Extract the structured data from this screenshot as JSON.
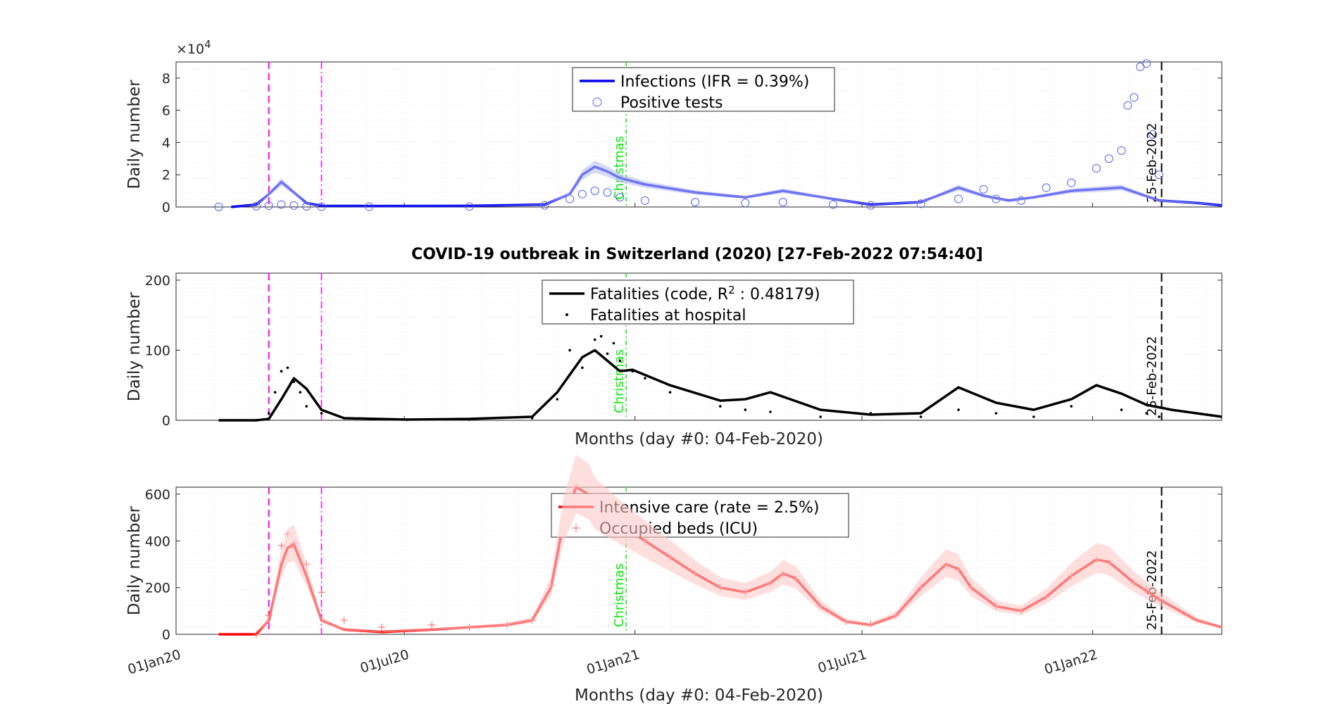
{
  "title": "COVID-19 outbreak in Switzerland (2020) [27-Feb-2022 07:54:40]",
  "colors": {
    "infections": "#0000ee",
    "fatalities": "#000000",
    "icu": "#ff0000",
    "band_blue": "#b9c1f5",
    "band_red": "#ffc8c8",
    "marker_magenta": "#ff00ff",
    "christmas": "#00ee00"
  },
  "x_axis": {
    "label": "Months (day #0: 04-Feb-2020)",
    "ticks": [
      {
        "label": "01Jan20",
        "day": -34
      },
      {
        "label": "01Jul20",
        "day": 148
      },
      {
        "label": "01Jan21",
        "day": 332
      },
      {
        "label": "01Jul21",
        "day": 513
      },
      {
        "label": "01Jan22",
        "day": 697
      }
    ],
    "range_days": [
      -34,
      800
    ]
  },
  "annotations": {
    "christmas": "Christmas",
    "today": "25-Feb-2022",
    "christmas_day": 325,
    "today_day": 752,
    "lockdown_start_day": 40,
    "lockdown_end_day": 82
  },
  "chart_data": [
    {
      "type": "line",
      "ylabel": "Daily number",
      "exponent_label": "×10",
      "exponent": "4",
      "ylim": [
        0,
        90000
      ],
      "yticks": [
        "0",
        "2",
        "4",
        "6",
        "8"
      ],
      "grid": true,
      "legend_placement": "top-center",
      "series": [
        {
          "name": "Infections (IFR = 0.39%)",
          "style": "line",
          "x": [
            10,
            30,
            40,
            50,
            60,
            70,
            82,
            120,
            200,
            260,
            280,
            290,
            300,
            310,
            320,
            340,
            380,
            420,
            450,
            490,
            520,
            560,
            590,
            610,
            630,
            650,
            680,
            720,
            750,
            780,
            800
          ],
          "y": [
            0,
            1500,
            8000,
            15500,
            9000,
            2500,
            700,
            600,
            700,
            1500,
            8000,
            20000,
            25000,
            22000,
            18000,
            14000,
            9000,
            6000,
            10000,
            5000,
            1500,
            3000,
            12000,
            7000,
            4000,
            6000,
            10000,
            12000,
            4000,
            2500,
            1000
          ]
        },
        {
          "name": "Positive tests",
          "style": "circles",
          "x": [
            0,
            30,
            40,
            50,
            60,
            70,
            82,
            120,
            200,
            260,
            280,
            290,
            300,
            310,
            320,
            340,
            380,
            420,
            450,
            490,
            520,
            560,
            590,
            610,
            620,
            640,
            660,
            680,
            700,
            710,
            720,
            725,
            730,
            735,
            740,
            745,
            750
          ],
          "y": [
            0,
            500,
            800,
            1500,
            900,
            400,
            200,
            200,
            300,
            1000,
            5000,
            8000,
            10000,
            9000,
            6000,
            4000,
            3000,
            2500,
            3000,
            1500,
            1000,
            2000,
            5000,
            11000,
            5000,
            4000,
            12000,
            15000,
            24000,
            30000,
            35000,
            63000,
            68000,
            87000,
            89000,
            45000,
            20000
          ]
        }
      ]
    },
    {
      "type": "line",
      "title": "COVID-19 outbreak in Switzerland (2020) [27-Feb-2022 07:54:40]",
      "ylabel": "Daily number",
      "xlabel": "Months (day #0: 04-Feb-2020)",
      "ylim": [
        0,
        210
      ],
      "yticks": [
        "0",
        "100",
        "200"
      ],
      "grid": true,
      "legend_placement": "top-center",
      "series": [
        {
          "name": "Fatalities (code, R",
          "name_sup": "2",
          "name_suffix": " : 0.48179)",
          "style": "line",
          "x": [
            0,
            30,
            40,
            50,
            60,
            70,
            82,
            100,
            150,
            200,
            250,
            270,
            290,
            300,
            310,
            320,
            330,
            360,
            400,
            420,
            440,
            480,
            520,
            560,
            590,
            620,
            650,
            680,
            700,
            720,
            740,
            760,
            800
          ],
          "y": [
            0,
            0,
            2,
            30,
            60,
            45,
            15,
            3,
            1,
            2,
            5,
            40,
            90,
            100,
            85,
            70,
            72,
            50,
            28,
            30,
            40,
            15,
            8,
            10,
            47,
            25,
            15,
            30,
            50,
            38,
            22,
            15,
            5
          ]
        },
        {
          "name": "Fatalities at hospital",
          "style": "dots",
          "x": [
            30,
            40,
            45,
            50,
            55,
            60,
            65,
            70,
            82,
            100,
            150,
            200,
            250,
            270,
            280,
            290,
            300,
            305,
            310,
            315,
            320,
            330,
            340,
            360,
            400,
            420,
            440,
            480,
            520,
            560,
            590,
            620,
            650,
            680,
            700,
            720,
            740,
            750
          ],
          "y": [
            0,
            10,
            40,
            70,
            75,
            55,
            40,
            20,
            10,
            3,
            1,
            1,
            3,
            30,
            100,
            75,
            115,
            120,
            95,
            110,
            85,
            70,
            60,
            40,
            20,
            15,
            12,
            5,
            10,
            5,
            15,
            10,
            5,
            20,
            50,
            15,
            10,
            5
          ]
        }
      ]
    },
    {
      "type": "line",
      "ylabel": "Daily number",
      "xlabel": "Months (day #0: 04-Feb-2020)",
      "ylim": [
        0,
        630
      ],
      "yticks": [
        "0",
        "200",
        "400",
        "600"
      ],
      "grid": true,
      "legend_placement": "top-center",
      "series": [
        {
          "name": "Intensive care (rate = 2.5%)",
          "style": "line",
          "x": [
            0,
            30,
            40,
            45,
            50,
            55,
            60,
            70,
            82,
            100,
            130,
            170,
            200,
            230,
            250,
            265,
            275,
            285,
            295,
            300,
            320,
            340,
            360,
            380,
            400,
            420,
            440,
            450,
            460,
            480,
            500,
            520,
            540,
            560,
            580,
            590,
            600,
            620,
            640,
            660,
            680,
            700,
            710,
            730,
            750,
            780,
            800
          ],
          "y": [
            0,
            0,
            60,
            180,
            300,
            370,
            385,
            250,
            60,
            20,
            10,
            20,
            30,
            40,
            60,
            200,
            480,
            630,
            600,
            550,
            470,
            400,
            330,
            260,
            200,
            180,
            220,
            260,
            240,
            120,
            55,
            40,
            80,
            200,
            300,
            280,
            200,
            120,
            100,
            160,
            250,
            320,
            310,
            220,
            150,
            60,
            30
          ]
        },
        {
          "name": "Occupied beds (ICU)",
          "style": "plus",
          "x": [
            30,
            40,
            50,
            55,
            60,
            70,
            82,
            100,
            130,
            170,
            200,
            230,
            250,
            265,
            275,
            285,
            300,
            320,
            340,
            360,
            380,
            400,
            420,
            440,
            450,
            460,
            480,
            500,
            520,
            540,
            560,
            580,
            590,
            600,
            620,
            640,
            660,
            680,
            700,
            710,
            730,
            740,
            750
          ],
          "y": [
            0,
            80,
            380,
            430,
            390,
            300,
            180,
            60,
            30,
            40,
            30,
            40,
            60,
            210,
            500,
            630,
            560,
            470,
            400,
            330,
            260,
            200,
            180,
            215,
            255,
            235,
            120,
            55,
            45,
            80,
            200,
            295,
            275,
            200,
            120,
            100,
            160,
            250,
            320,
            305,
            220,
            195,
            150
          ]
        }
      ]
    }
  ]
}
